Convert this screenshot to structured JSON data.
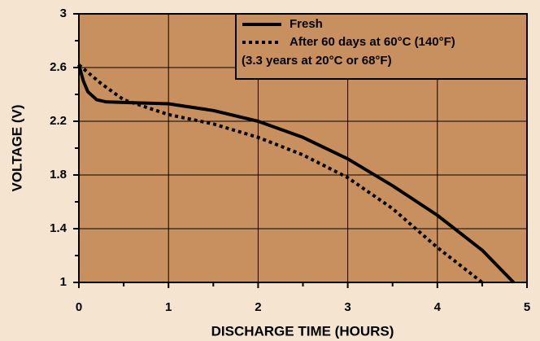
{
  "chart_data": {
    "type": "line",
    "xlabel": "DISCHARGE TIME (HOURS)",
    "ylabel": "VOLTAGE (V)",
    "xlim": [
      0,
      5
    ],
    "ylim": [
      1,
      3
    ],
    "xticks": [
      0,
      1,
      2,
      3,
      4,
      5
    ],
    "yticks": [
      1,
      1.4,
      1.8,
      2.2,
      2.6,
      3
    ],
    "xminor_ticks": [
      0.5,
      1.5,
      2.5,
      3.5,
      4.5
    ],
    "yminor_ticks": [
      1.2,
      1.6,
      2.0,
      2.4,
      2.8
    ],
    "grid": true,
    "legend_position": "upper right",
    "legend_note": "(3.3 years at 20°C or 68°F)",
    "series": [
      {
        "name": "Fresh",
        "color": "#000000",
        "style": "solid",
        "x": [
          0,
          0.05,
          0.1,
          0.2,
          0.3,
          0.5,
          1,
          1.5,
          2,
          2.5,
          3,
          3.5,
          4,
          4.5,
          4.85
        ],
        "values": [
          2.62,
          2.5,
          2.42,
          2.36,
          2.345,
          2.34,
          2.33,
          2.28,
          2.2,
          2.08,
          1.92,
          1.72,
          1.5,
          1.24,
          1.0
        ]
      },
      {
        "name": "After 60 days at 60°C (140°F)",
        "color": "#000000",
        "style": "dotted",
        "x": [
          0,
          0.25,
          0.5,
          1,
          1.5,
          2,
          2.5,
          3,
          3.5,
          4,
          4.5
        ],
        "values": [
          2.62,
          2.48,
          2.36,
          2.25,
          2.18,
          2.08,
          1.95,
          1.78,
          1.55,
          1.26,
          1.0
        ]
      }
    ]
  }
}
